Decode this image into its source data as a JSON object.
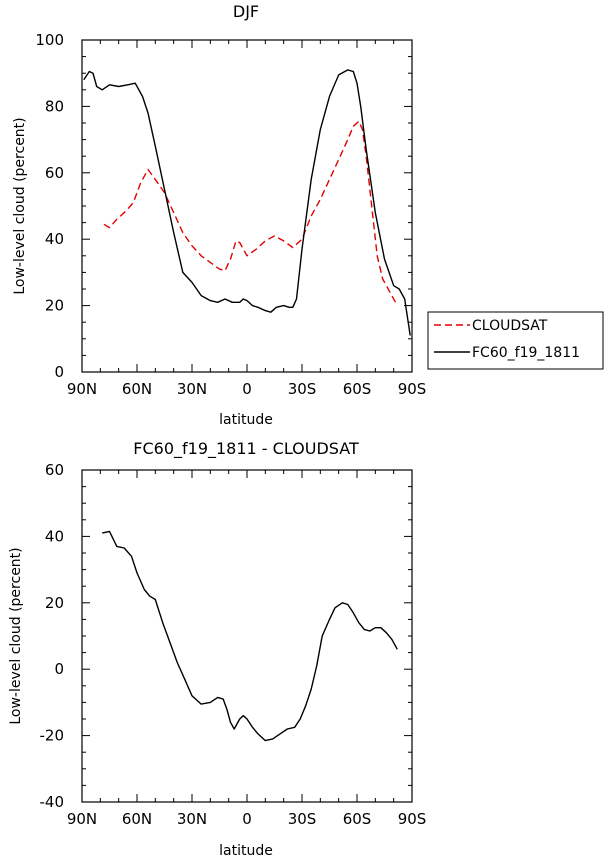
{
  "chart_data": [
    {
      "type": "line",
      "title": "DJF",
      "xlabel": "latitude",
      "ylabel": "Low-level cloud (percent)",
      "xlim": [
        90,
        -90
      ],
      "ylim": [
        0,
        100
      ],
      "xticks": [
        90,
        60,
        30,
        0,
        -30,
        -60,
        -90
      ],
      "xtick_labels": [
        "90N",
        "60N",
        "30N",
        "0",
        "30S",
        "60S",
        "90S"
      ],
      "yticks": [
        0,
        20,
        40,
        60,
        80,
        100
      ],
      "ytick_labels": [
        "0",
        "20",
        "40",
        "60",
        "80",
        "100"
      ],
      "legend": {
        "placement": "right",
        "entries": [
          "CLOUDSAT",
          "FC60_f19_1811"
        ]
      },
      "series": [
        {
          "name": "CLOUDSAT",
          "color": "#e00000",
          "style": "dashed",
          "x": [
            78,
            75,
            71,
            66,
            62,
            58,
            54,
            50,
            45,
            40,
            35,
            30,
            25,
            20,
            15,
            12,
            9,
            6,
            4,
            0,
            -5,
            -10,
            -15,
            -20,
            -25,
            -30,
            -35,
            -40,
            -45,
            -50,
            -55,
            -58,
            -61,
            -63,
            -65,
            -68,
            -71,
            -74,
            -78,
            -81
          ],
          "y": [
            44.5,
            43.5,
            46,
            48.5,
            51,
            57,
            61,
            58,
            54,
            48,
            42,
            38,
            35,
            33,
            31,
            30.5,
            34,
            39.5,
            39,
            35,
            37,
            39.5,
            41,
            39.5,
            37.5,
            40,
            47,
            52,
            58,
            64,
            70,
            74,
            75.5,
            73,
            65,
            50,
            35,
            28,
            24,
            21
          ]
        },
        {
          "name": "FC60_f19_1811",
          "color": "#000000",
          "style": "solid",
          "x": [
            89,
            86,
            84,
            82,
            79,
            75,
            70,
            65,
            61,
            57,
            54,
            50,
            45,
            40,
            35,
            30,
            25,
            20,
            16,
            12,
            8,
            4,
            2,
            0,
            -3,
            -6,
            -10,
            -13,
            -16,
            -20,
            -23,
            -25,
            -27,
            -30,
            -35,
            -40,
            -45,
            -50,
            -55,
            -58,
            -60,
            -62,
            -65,
            -70,
            -75,
            -80,
            -83,
            -86,
            -89
          ],
          "y": [
            88,
            90.5,
            90,
            86,
            85,
            86.5,
            86,
            86.5,
            87,
            83,
            78,
            68,
            55,
            42,
            30,
            27,
            23,
            21.5,
            21,
            22,
            21,
            21,
            22,
            21.5,
            20,
            19.5,
            18.5,
            18,
            19.5,
            20,
            19.5,
            19.5,
            22,
            37,
            58,
            73,
            83,
            89.5,
            91,
            90.5,
            87,
            80,
            67,
            48,
            34,
            26,
            25,
            22,
            11
          ]
        }
      ]
    },
    {
      "type": "line",
      "title": "FC60_f19_1811 - CLOUDSAT",
      "xlabel": "latitude",
      "ylabel": "Low-level cloud (percent)",
      "xlim": [
        90,
        -90
      ],
      "ylim": [
        -40,
        60
      ],
      "xticks": [
        90,
        60,
        30,
        0,
        -30,
        -60,
        -90
      ],
      "xtick_labels": [
        "90N",
        "60N",
        "30N",
        "0",
        "30S",
        "60S",
        "90S"
      ],
      "yticks": [
        -40,
        -20,
        0,
        20,
        40,
        60
      ],
      "ytick_labels": [
        "-40",
        "-20",
        "0",
        "20",
        "40",
        "60"
      ],
      "series": [
        {
          "name": "FC60_f19_1811 - CLOUDSAT",
          "color": "#000000",
          "style": "solid",
          "x": [
            79,
            75,
            71,
            67,
            63,
            60,
            56,
            53,
            50,
            46,
            42,
            38,
            34,
            30,
            25,
            20,
            16,
            13,
            11,
            9,
            7,
            4,
            2,
            0,
            -3,
            -6,
            -10,
            -14,
            -18,
            -22,
            -26,
            -29,
            -32,
            -35,
            -38,
            -41,
            -45,
            -48,
            -52,
            -55,
            -58,
            -61,
            -64,
            -67,
            -70,
            -73,
            -76,
            -79,
            -82
          ],
          "y": [
            41,
            41.5,
            37,
            36.5,
            34,
            29,
            24,
            22,
            21,
            14,
            8,
            2,
            -3,
            -8,
            -10.5,
            -10,
            -8.5,
            -9,
            -12,
            -16,
            -18,
            -15,
            -14,
            -15,
            -17.5,
            -19.5,
            -21.5,
            -21,
            -19.5,
            -18,
            -17.5,
            -15,
            -11,
            -6,
            1,
            10,
            15,
            18.5,
            20,
            19.5,
            17,
            14,
            12,
            11.5,
            12.5,
            12.5,
            11,
            9,
            6
          ]
        }
      ]
    }
  ]
}
